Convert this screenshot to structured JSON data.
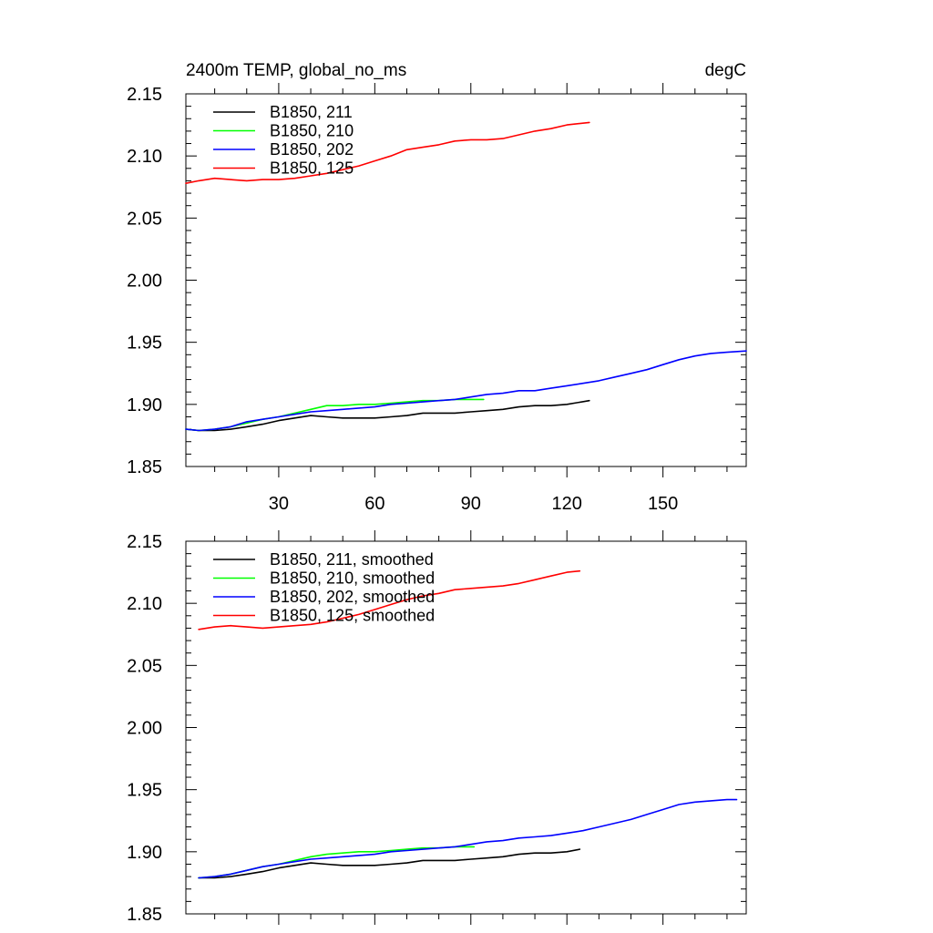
{
  "chart_data": [
    {
      "type": "line",
      "title_left": "2400m TEMP, global_no_ms",
      "title_right": "degC",
      "xlim": [
        1,
        176
      ],
      "ylim": [
        1.85,
        2.15
      ],
      "xticks": [
        30,
        60,
        90,
        120,
        150
      ],
      "yticks": [
        1.85,
        1.9,
        1.95,
        2.0,
        2.05,
        2.1,
        2.15
      ],
      "ytick_labels": [
        "1.85",
        "1.90",
        "1.95",
        "2.00",
        "2.05",
        "2.10",
        "2.15"
      ],
      "legend_position": "top-left",
      "series": [
        {
          "name": "B1850, 211",
          "color": "#000000",
          "x": [
            1,
            5,
            10,
            15,
            20,
            25,
            30,
            35,
            40,
            45,
            50,
            55,
            60,
            65,
            70,
            75,
            80,
            85,
            90,
            95,
            100,
            105,
            110,
            115,
            120,
            127
          ],
          "y": [
            1.88,
            1.879,
            1.879,
            1.88,
            1.882,
            1.884,
            1.887,
            1.889,
            1.891,
            1.89,
            1.889,
            1.889,
            1.889,
            1.89,
            1.891,
            1.893,
            1.893,
            1.893,
            1.894,
            1.895,
            1.896,
            1.898,
            1.899,
            1.899,
            1.9,
            1.903
          ]
        },
        {
          "name": "B1850, 210",
          "color": "#00ff00",
          "x": [
            1,
            5,
            10,
            15,
            20,
            25,
            30,
            35,
            40,
            45,
            50,
            55,
            60,
            65,
            70,
            75,
            80,
            85,
            90,
            94
          ],
          "y": [
            1.88,
            1.879,
            1.88,
            1.882,
            1.885,
            1.888,
            1.89,
            1.893,
            1.896,
            1.899,
            1.899,
            1.9,
            1.9,
            1.901,
            1.902,
            1.903,
            1.903,
            1.904,
            1.904,
            1.904
          ]
        },
        {
          "name": "B1850, 202",
          "color": "#0000ff",
          "x": [
            1,
            5,
            10,
            15,
            20,
            25,
            30,
            35,
            40,
            45,
            50,
            55,
            60,
            65,
            70,
            75,
            80,
            85,
            90,
            95,
            100,
            105,
            110,
            115,
            120,
            125,
            130,
            135,
            140,
            145,
            150,
            155,
            160,
            165,
            170,
            176
          ],
          "y": [
            1.88,
            1.879,
            1.88,
            1.882,
            1.886,
            1.888,
            1.89,
            1.892,
            1.894,
            1.895,
            1.896,
            1.897,
            1.898,
            1.9,
            1.901,
            1.902,
            1.903,
            1.904,
            1.906,
            1.908,
            1.909,
            1.911,
            1.911,
            1.913,
            1.915,
            1.917,
            1.919,
            1.922,
            1.925,
            1.928,
            1.932,
            1.936,
            1.939,
            1.941,
            1.942,
            1.943
          ]
        },
        {
          "name": "B1850, 125",
          "color": "#ff0000",
          "x": [
            1,
            5,
            10,
            15,
            20,
            25,
            30,
            35,
            40,
            45,
            50,
            55,
            60,
            65,
            70,
            75,
            80,
            85,
            90,
            95,
            100,
            105,
            110,
            115,
            120,
            127
          ],
          "y": [
            2.078,
            2.08,
            2.082,
            2.081,
            2.08,
            2.081,
            2.081,
            2.082,
            2.084,
            2.086,
            2.089,
            2.092,
            2.096,
            2.1,
            2.105,
            2.107,
            2.109,
            2.112,
            2.113,
            2.113,
            2.114,
            2.117,
            2.12,
            2.122,
            2.125,
            2.127
          ]
        }
      ]
    },
    {
      "type": "line",
      "xlim": [
        1,
        176
      ],
      "ylim": [
        1.85,
        2.15
      ],
      "xticks": [
        30,
        60,
        90,
        120,
        150
      ],
      "yticks": [
        1.85,
        1.9,
        1.95,
        2.0,
        2.05,
        2.1,
        2.15
      ],
      "ytick_labels": [
        "1.85",
        "1.90",
        "1.95",
        "2.00",
        "2.05",
        "2.10",
        "2.15"
      ],
      "legend_position": "top-left",
      "series": [
        {
          "name": "B1850, 211, smoothed",
          "color": "#000000",
          "x": [
            5,
            10,
            15,
            20,
            25,
            30,
            35,
            40,
            45,
            50,
            55,
            60,
            65,
            70,
            75,
            80,
            85,
            90,
            95,
            100,
            105,
            110,
            115,
            120,
            124
          ],
          "y": [
            1.879,
            1.879,
            1.88,
            1.882,
            1.884,
            1.887,
            1.889,
            1.891,
            1.89,
            1.889,
            1.889,
            1.889,
            1.89,
            1.891,
            1.893,
            1.893,
            1.893,
            1.894,
            1.895,
            1.896,
            1.898,
            1.899,
            1.899,
            1.9,
            1.902
          ]
        },
        {
          "name": "B1850, 210, smoothed",
          "color": "#00ff00",
          "x": [
            5,
            10,
            15,
            20,
            25,
            30,
            35,
            40,
            45,
            50,
            55,
            60,
            65,
            70,
            75,
            80,
            85,
            91
          ],
          "y": [
            1.879,
            1.88,
            1.882,
            1.885,
            1.888,
            1.89,
            1.893,
            1.896,
            1.898,
            1.899,
            1.9,
            1.9,
            1.901,
            1.902,
            1.903,
            1.903,
            1.904,
            1.904
          ]
        },
        {
          "name": "B1850, 202, smoothed",
          "color": "#0000ff",
          "x": [
            5,
            10,
            15,
            20,
            25,
            30,
            35,
            40,
            45,
            50,
            55,
            60,
            65,
            70,
            75,
            80,
            85,
            90,
            95,
            100,
            105,
            110,
            115,
            120,
            125,
            130,
            135,
            140,
            145,
            150,
            155,
            160,
            165,
            170,
            173
          ],
          "y": [
            1.879,
            1.88,
            1.882,
            1.885,
            1.888,
            1.89,
            1.892,
            1.894,
            1.895,
            1.896,
            1.897,
            1.898,
            1.9,
            1.901,
            1.902,
            1.903,
            1.904,
            1.906,
            1.908,
            1.909,
            1.911,
            1.912,
            1.913,
            1.915,
            1.917,
            1.92,
            1.923,
            1.926,
            1.93,
            1.934,
            1.938,
            1.94,
            1.941,
            1.942,
            1.942
          ]
        },
        {
          "name": "B1850, 125, smoothed",
          "color": "#ff0000",
          "x": [
            5,
            10,
            15,
            20,
            25,
            30,
            35,
            40,
            45,
            50,
            55,
            60,
            65,
            70,
            75,
            80,
            85,
            90,
            95,
            100,
            105,
            110,
            115,
            120,
            124
          ],
          "y": [
            2.079,
            2.081,
            2.082,
            2.081,
            2.08,
            2.081,
            2.082,
            2.083,
            2.085,
            2.088,
            2.091,
            2.095,
            2.099,
            2.103,
            2.106,
            2.108,
            2.111,
            2.112,
            2.113,
            2.114,
            2.116,
            2.119,
            2.122,
            2.125,
            2.126
          ]
        }
      ]
    }
  ]
}
